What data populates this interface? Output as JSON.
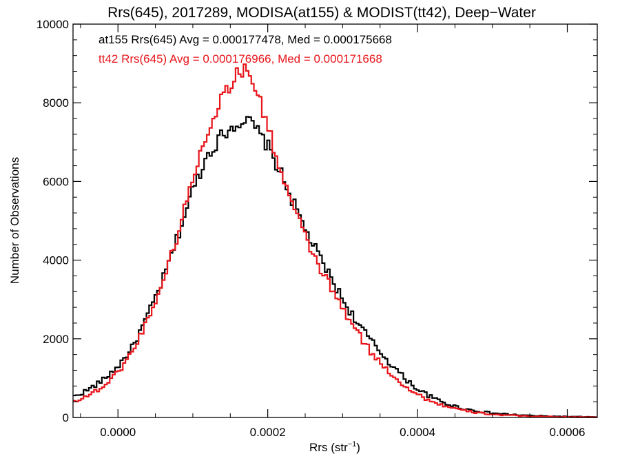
{
  "chart_data": {
    "type": "line",
    "title": "Rrs(645), 2017289, MODISA(at155) & MODIST(tt42), Deep−Water",
    "xlabel_main": "Rrs (str",
    "xlabel_sup": "−1",
    "xlabel_close": ")",
    "ylabel": "Number of Observations",
    "xlim": [
      -6e-05,
      0.00064
    ],
    "ylim": [
      0,
      10000
    ],
    "xticks": [
      0.0,
      0.0002,
      0.0004,
      0.0006
    ],
    "xtick_labels": [
      "0.0000",
      "0.0002",
      "0.0004",
      "0.0006"
    ],
    "yticks": [
      0,
      2000,
      4000,
      6000,
      8000,
      10000
    ],
    "ytick_labels": [
      "0",
      "2000",
      "4000",
      "6000",
      "8000",
      "10000"
    ],
    "grid": false,
    "annotations": [
      {
        "text": "at155 Rrs(645) Avg = 0.000177478, Med = 0.000175668",
        "color": "#000000"
      },
      {
        "text": "tt42 Rrs(645) Avg = 0.000176966, Med = 0.000171668",
        "color": "#e8141a"
      }
    ],
    "series": [
      {
        "name": "at155",
        "color": "#000000",
        "style": "step",
        "x": [
          -6e-05,
          -4e-05,
          -2e-05,
          0.0,
          2e-05,
          4e-05,
          6e-05,
          8e-05,
          0.0001,
          0.00012,
          0.00014,
          0.00016,
          0.00017,
          0.00018,
          0.0002,
          0.00022,
          0.00024,
          0.00026,
          0.00028,
          0.0003,
          0.00032,
          0.00034,
          0.00036,
          0.00038,
          0.0004,
          0.00042,
          0.00044,
          0.00046,
          0.00048,
          0.0005,
          0.00052,
          0.00054,
          0.00056,
          0.00058,
          0.0006,
          0.00062,
          0.00064
        ],
        "y": [
          520,
          700,
          950,
          1300,
          1800,
          2600,
          3500,
          4600,
          5800,
          6700,
          7200,
          7500,
          7550,
          7450,
          6900,
          6100,
          5200,
          4400,
          3700,
          3000,
          2400,
          1900,
          1450,
          1050,
          720,
          500,
          340,
          230,
          160,
          110,
          80,
          55,
          40,
          28,
          20,
          15,
          10
        ]
      },
      {
        "name": "tt42",
        "color": "#e8141a",
        "style": "step",
        "x": [
          -6e-05,
          -4e-05,
          -2e-05,
          0.0,
          2e-05,
          4e-05,
          6e-05,
          8e-05,
          0.0001,
          0.00012,
          0.00014,
          0.00016,
          0.00017,
          0.00018,
          0.0002,
          0.00022,
          0.00024,
          0.00026,
          0.00028,
          0.0003,
          0.00032,
          0.00034,
          0.00036,
          0.00038,
          0.0004,
          0.00042,
          0.00044,
          0.00046,
          0.00048,
          0.0005,
          0.00052,
          0.00054,
          0.00056,
          0.00058,
          0.0006,
          0.00062,
          0.00064
        ],
        "y": [
          400,
          560,
          780,
          1150,
          1700,
          2500,
          3450,
          4650,
          6100,
          7300,
          8200,
          8750,
          8850,
          8600,
          7400,
          6100,
          5050,
          4150,
          3450,
          2750,
          2150,
          1600,
          1200,
          850,
          580,
          400,
          270,
          180,
          120,
          80,
          55,
          38,
          26,
          18,
          12,
          8,
          5
        ]
      }
    ]
  }
}
